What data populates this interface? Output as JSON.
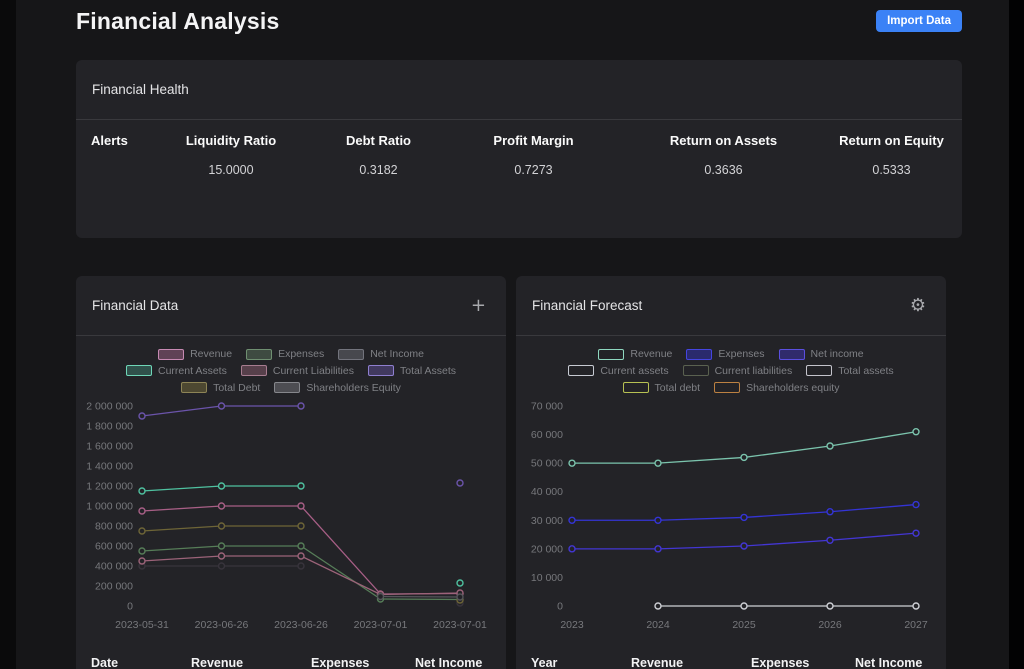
{
  "page": {
    "title": "Financial Analysis"
  },
  "header": {
    "import_button": "Import Data"
  },
  "colors": {
    "accent_blue": "#3b82f6",
    "card_bg": "#232327",
    "axis_text": "#77787c"
  },
  "health": {
    "title": "Financial Health",
    "columns": [
      "Alerts",
      "Liquidity Ratio",
      "Debt Ratio",
      "Profit Margin",
      "Return on Assets",
      "Return on Equity"
    ],
    "values": [
      "",
      "15.0000",
      "0.3182",
      "0.7273",
      "0.3636",
      "0.5333"
    ]
  },
  "financial_data_panel": {
    "title": "Financial Data",
    "action_icon": "plus-icon",
    "action_glyph": "+",
    "table_headers": [
      "Date",
      "Revenue",
      "Expenses",
      "Net Income"
    ],
    "legend": [
      {
        "label": "Revenue",
        "border": "#c78ab3",
        "fill": "rgba(170,105,145,0.45)"
      },
      {
        "label": "Expenses",
        "border": "#6f8f71",
        "fill": "rgba(90,115,92,0.5)"
      },
      {
        "label": "Net Income",
        "border": "#73747d",
        "fill": "rgba(108,110,118,0.5)"
      },
      {
        "label": "Current Assets",
        "border": "#6fd7b8",
        "fill": "rgba(80,190,160,0.3)"
      },
      {
        "label": "Current Liabilities",
        "border": "#a77d90",
        "fill": "rgba(150,100,120,0.45)"
      },
      {
        "label": "Total Assets",
        "border": "#8f7fd0",
        "fill": "rgba(110,90,180,0.4)"
      },
      {
        "label": "Total Debt",
        "border": "#8d8456",
        "fill": "rgba(120,110,60,0.5)"
      },
      {
        "label": "Shareholders Equity",
        "border": "#86878c",
        "fill": "rgba(120,120,125,0.5)"
      }
    ],
    "chart_data": {
      "type": "line",
      "title": "Financial Data",
      "categories": [
        "2023-05-31",
        "2023-06-26",
        "2023-06-26",
        "2023-07-01",
        "2023-07-01"
      ],
      "ylim": [
        0,
        2000000
      ],
      "ytick_step": 200000,
      "grid": false,
      "legend_position": "top",
      "series": [
        {
          "name": "Revenue",
          "color": "#a85f86",
          "values": [
            950000,
            1000000,
            1000000,
            120000,
            125000
          ]
        },
        {
          "name": "Expenses",
          "color": "#567d58",
          "values": [
            550000,
            600000,
            600000,
            70000,
            65000
          ]
        },
        {
          "name": "Net Income",
          "color": "#38343c",
          "values": [
            400000,
            400000,
            400000,
            null,
            30000
          ]
        },
        {
          "name": "Current Assets",
          "color": "#4fc2a0",
          "values": [
            1150000,
            1200000,
            1200000,
            null,
            230000
          ]
        },
        {
          "name": "Current Liabilities",
          "color": "#9c6379",
          "values": [
            450000,
            500000,
            500000,
            115000,
            130000
          ]
        },
        {
          "name": "Total Assets",
          "color": "#6b54ab",
          "values": [
            1900000,
            2000000,
            2000000,
            null,
            1230000
          ]
        },
        {
          "name": "Total Debt",
          "color": "#6e6537",
          "values": [
            750000,
            800000,
            800000,
            null,
            60000
          ]
        },
        {
          "name": "Shareholders Equity",
          "color": "#55555a",
          "values": [
            null,
            null,
            null,
            95000,
            90000
          ]
        }
      ]
    }
  },
  "forecast_panel": {
    "title": "Financial Forecast",
    "action_icon": "gear-icon",
    "action_glyph": "⚙",
    "table_headers": [
      "Year",
      "Revenue",
      "Expenses",
      "Net Income"
    ],
    "legend": [
      {
        "label": "Revenue",
        "border": "#8fd8c0",
        "fill": "transparent"
      },
      {
        "label": "Expenses",
        "border": "#4545e0",
        "fill": "rgba(52,52,214,0.4)"
      },
      {
        "label": "Net income",
        "border": "#5b4fe0",
        "fill": "rgba(67,54,212,0.4)"
      },
      {
        "label": "Current assets",
        "border": "#c7cbd3",
        "fill": "transparent"
      },
      {
        "label": "Current liabilities",
        "border": "#5a6150",
        "fill": "transparent"
      },
      {
        "label": "Total assets",
        "border": "#c4c4cc",
        "fill": "transparent"
      },
      {
        "label": "Total debt",
        "border": "#b7c153",
        "fill": "transparent"
      },
      {
        "label": "Shareholders equity",
        "border": "#bc8142",
        "fill": "transparent"
      }
    ],
    "chart_data": {
      "type": "line",
      "title": "Financial Forecast",
      "categories": [
        "2023",
        "2024",
        "2025",
        "2026",
        "2027"
      ],
      "ylim": [
        0,
        70000
      ],
      "ytick_step": 10000,
      "grid": false,
      "legend_position": "top",
      "series": [
        {
          "name": "Revenue",
          "color": "#7bc4ad",
          "values": [
            50000,
            50000,
            52000,
            56000,
            61000
          ]
        },
        {
          "name": "Expenses",
          "color": "#3434d6",
          "values": [
            30000,
            30000,
            31000,
            33000,
            35500
          ]
        },
        {
          "name": "Net income",
          "color": "#4336d4",
          "values": [
            20000,
            20000,
            21000,
            23000,
            25500
          ]
        },
        {
          "name": "Total assets",
          "color": "#cfd1d6",
          "values": [
            null,
            0,
            0,
            0,
            0
          ]
        }
      ]
    }
  }
}
